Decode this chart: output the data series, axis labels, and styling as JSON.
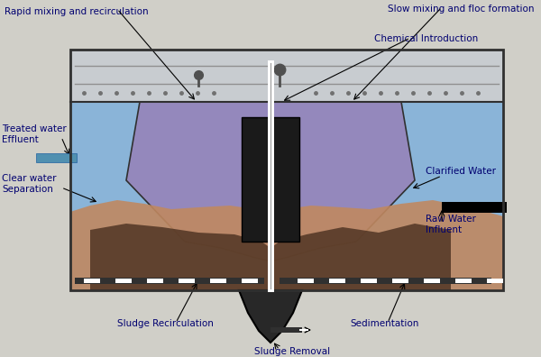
{
  "fig_width": 6.0,
  "fig_height": 3.96,
  "dpi": 100,
  "bg_color": "#d0cfc8",
  "labels": {
    "rapid_mixing": "Rapid mixing and recirculation",
    "slow_mixing": "Slow mixing and floc formation",
    "chemical_intro": "Chemical Introduction",
    "treated_water": "Treated water\nEffluent",
    "clarified_water": "Clarified Water",
    "clear_water_sep": "Clear water\nSeparation",
    "raw_water": "Raw Water\nInfluent",
    "sludge_recirc": "Sludge Recirculation",
    "sedimentation": "Sedimentation",
    "sludge_removal": "Sludge Removal"
  },
  "colors": {
    "blue_water": "#8ab4d8",
    "purple_cone": "#9488bc",
    "dark_inner": "#1a1a1a",
    "tan_sludge": "#c08860",
    "dark_sludge": "#4a3020",
    "outer_box_fill": "#b0b8c8",
    "top_box_fill": "#c8ccd0",
    "white": "#ffffff",
    "black": "#000000",
    "dark_gray": "#303030",
    "label_color": "#000070",
    "pipe_blue": "#5090b0",
    "collector_dark": "#202020",
    "funnel_dark": "#282828"
  }
}
